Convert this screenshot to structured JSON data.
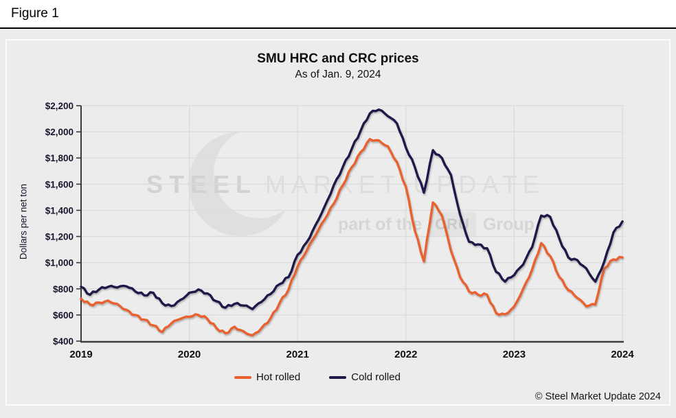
{
  "figure_label": "Figure 1",
  "chart_data": {
    "type": "line",
    "title": "SMU HRC and CRC prices",
    "subtitle": "As of Jan. 9, 2024",
    "ylabel": "Dollars per net ton",
    "xlabel": "",
    "ylim": [
      400,
      2200
    ],
    "y_tick_step": 200,
    "y_tick_labels": [
      "$400",
      "$600",
      "$800",
      "$1,000",
      "$1,200",
      "$1,400",
      "$1,600",
      "$1,800",
      "$2,000",
      "$2,200"
    ],
    "x_tick_labels": [
      "2019",
      "2020",
      "2021",
      "2022",
      "2023",
      "2024"
    ],
    "x_sampling": "monthly, Jan 2019 through Jan 2024",
    "grid": true,
    "legend_position": "bottom-center",
    "series": [
      {
        "name": "Hot rolled",
        "color": "#E8612E",
        "values": [
          725,
          680,
          695,
          710,
          685,
          640,
          600,
          565,
          520,
          470,
          535,
          570,
          585,
          600,
          570,
          500,
          460,
          510,
          475,
          445,
          500,
          575,
          690,
          795,
          970,
          1090,
          1210,
          1330,
          1450,
          1590,
          1730,
          1845,
          1945,
          1935,
          1890,
          1770,
          1580,
          1245,
          1010,
          1460,
          1360,
          1090,
          890,
          780,
          755,
          755,
          615,
          605,
          665,
          800,
          950,
          1150,
          1050,
          890,
          790,
          730,
          665,
          680,
          955,
          1025,
          1040
        ]
      },
      {
        "name": "Cold rolled",
        "color": "#1E1948",
        "values": [
          815,
          755,
          795,
          815,
          810,
          820,
          780,
          750,
          770,
          690,
          668,
          715,
          770,
          795,
          765,
          705,
          655,
          685,
          672,
          645,
          700,
          760,
          835,
          890,
          1060,
          1155,
          1290,
          1430,
          1590,
          1730,
          1870,
          2010,
          2140,
          2170,
          2120,
          2065,
          1880,
          1730,
          1535,
          1860,
          1800,
          1670,
          1370,
          1160,
          1140,
          1110,
          930,
          855,
          905,
          985,
          1120,
          1360,
          1350,
          1185,
          1040,
          1020,
          955,
          855,
          1010,
          1230,
          1315
        ]
      }
    ]
  },
  "watermark": {
    "brand_bold": "STEEL",
    "brand_light": "MARKET UPDATE",
    "tagline_prefix": "part of the",
    "tagline_box": "CRU",
    "tagline_suffix": "Group"
  },
  "footer": {
    "copyright": "© Steel Market Update 2024"
  },
  "colors": {
    "hot_rolled": "#E8612E",
    "cold_rolled": "#1E1948",
    "page_bg": "#ececec",
    "grid": "#dcdcdc",
    "axis": "#3b3b3b",
    "tick_text": "#15152c"
  }
}
